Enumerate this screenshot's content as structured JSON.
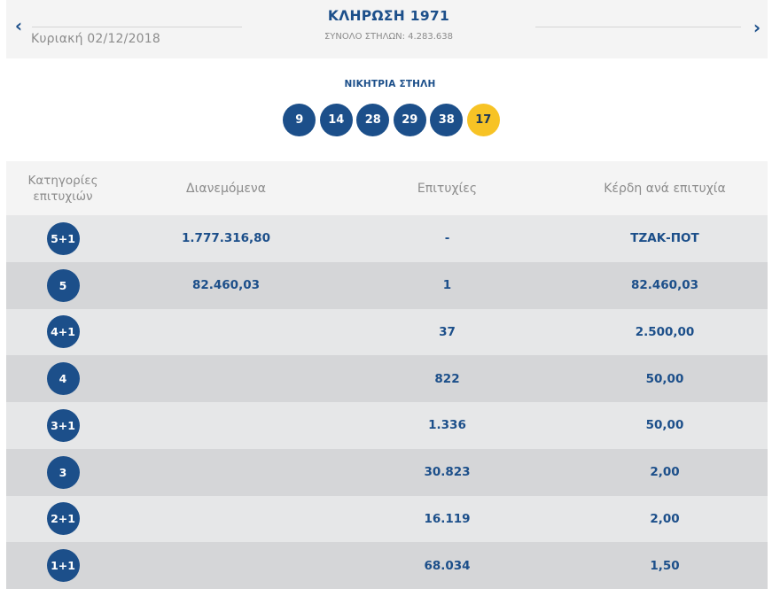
{
  "header": {
    "prev_icon": "chevron-left-icon",
    "next_icon": "chevron-right-icon",
    "date": "Κυριακή 02/12/2018",
    "title": "ΚΛΗΡΩΣΗ 1971",
    "total_columns": "ΣΥΝΟΛΟ ΣΤΗΛΩΝ: 4.283.638"
  },
  "winning": {
    "label": "ΝΙΚΗΤΡΙΑ ΣΤΗΛΗ",
    "numbers": [
      "9",
      "14",
      "28",
      "29",
      "38"
    ],
    "bonus": "17",
    "colors": {
      "ball": "#1c4f8a",
      "bonus": "#f7c325"
    }
  },
  "table": {
    "headers": {
      "category": "Κατηγορίες επιτυχιών",
      "distributed": "Διανεμόμενα",
      "winners": "Επιτυχίες",
      "prize": "Κέρδη ανά επιτυχία"
    },
    "rows": [
      {
        "category": "5+1",
        "distributed": "1.777.316,80",
        "winners": "-",
        "prize": "ΤΖΑΚ-ΠΟΤ"
      },
      {
        "category": "5",
        "distributed": "82.460,03",
        "winners": "1",
        "prize": "82.460,03"
      },
      {
        "category": "4+1",
        "distributed": "",
        "winners": "37",
        "prize": "2.500,00"
      },
      {
        "category": "4",
        "distributed": "",
        "winners": "822",
        "prize": "50,00"
      },
      {
        "category": "3+1",
        "distributed": "",
        "winners": "1.336",
        "prize": "50,00"
      },
      {
        "category": "3",
        "distributed": "",
        "winners": "30.823",
        "prize": "2,00"
      },
      {
        "category": "2+1",
        "distributed": "",
        "winners": "16.119",
        "prize": "2,00"
      },
      {
        "category": "1+1",
        "distributed": "",
        "winners": "68.034",
        "prize": "1,50"
      }
    ]
  }
}
